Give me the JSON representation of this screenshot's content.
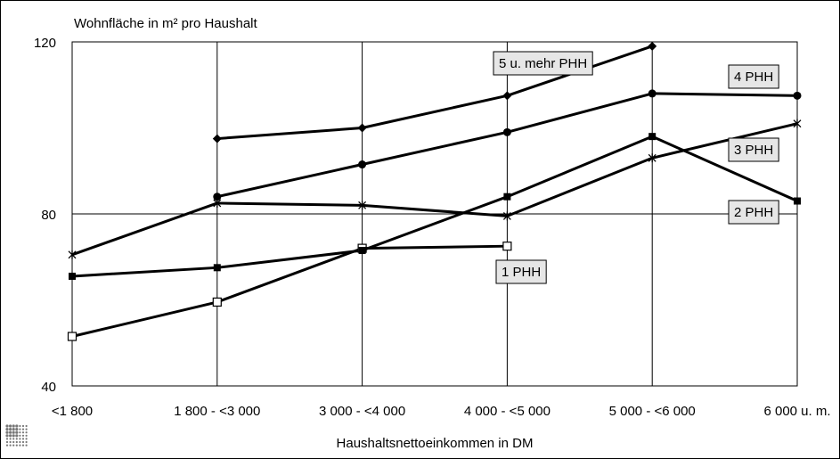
{
  "chart_data": {
    "type": "line",
    "ylabel": "Wohnfläche in m² pro Haushalt",
    "xlabel": "Haushaltsnettoeinkommen in DM",
    "categories": [
      "<1 800",
      "1 800 - <3 000",
      "3 000 - <4 000",
      "4 000 - <5 000",
      "5 000 - <6 000",
      "6 000 u. m."
    ],
    "ylim": [
      40,
      120
    ],
    "yticks": [
      "40",
      "80",
      "120"
    ],
    "grid": true,
    "series": [
      {
        "name": "1 PHH",
        "marker": "open-square",
        "values": [
          51.5,
          59.5,
          72,
          72.5,
          null,
          null
        ]
      },
      {
        "name": "2 PHH",
        "marker": "filled-square",
        "values": [
          65.5,
          67.5,
          71.5,
          84,
          98,
          83
        ]
      },
      {
        "name": "3 PHH",
        "marker": "star",
        "values": [
          70.5,
          82.5,
          82,
          79.5,
          93,
          101
        ]
      },
      {
        "name": "4 PHH",
        "marker": "filled-circle",
        "values": [
          null,
          84,
          91.5,
          99,
          108,
          107.5
        ]
      },
      {
        "name": "5 u. mehr PHH",
        "marker": "filled-diamond",
        "values": [
          null,
          97.5,
          100,
          107.5,
          119,
          null
        ]
      }
    ]
  }
}
